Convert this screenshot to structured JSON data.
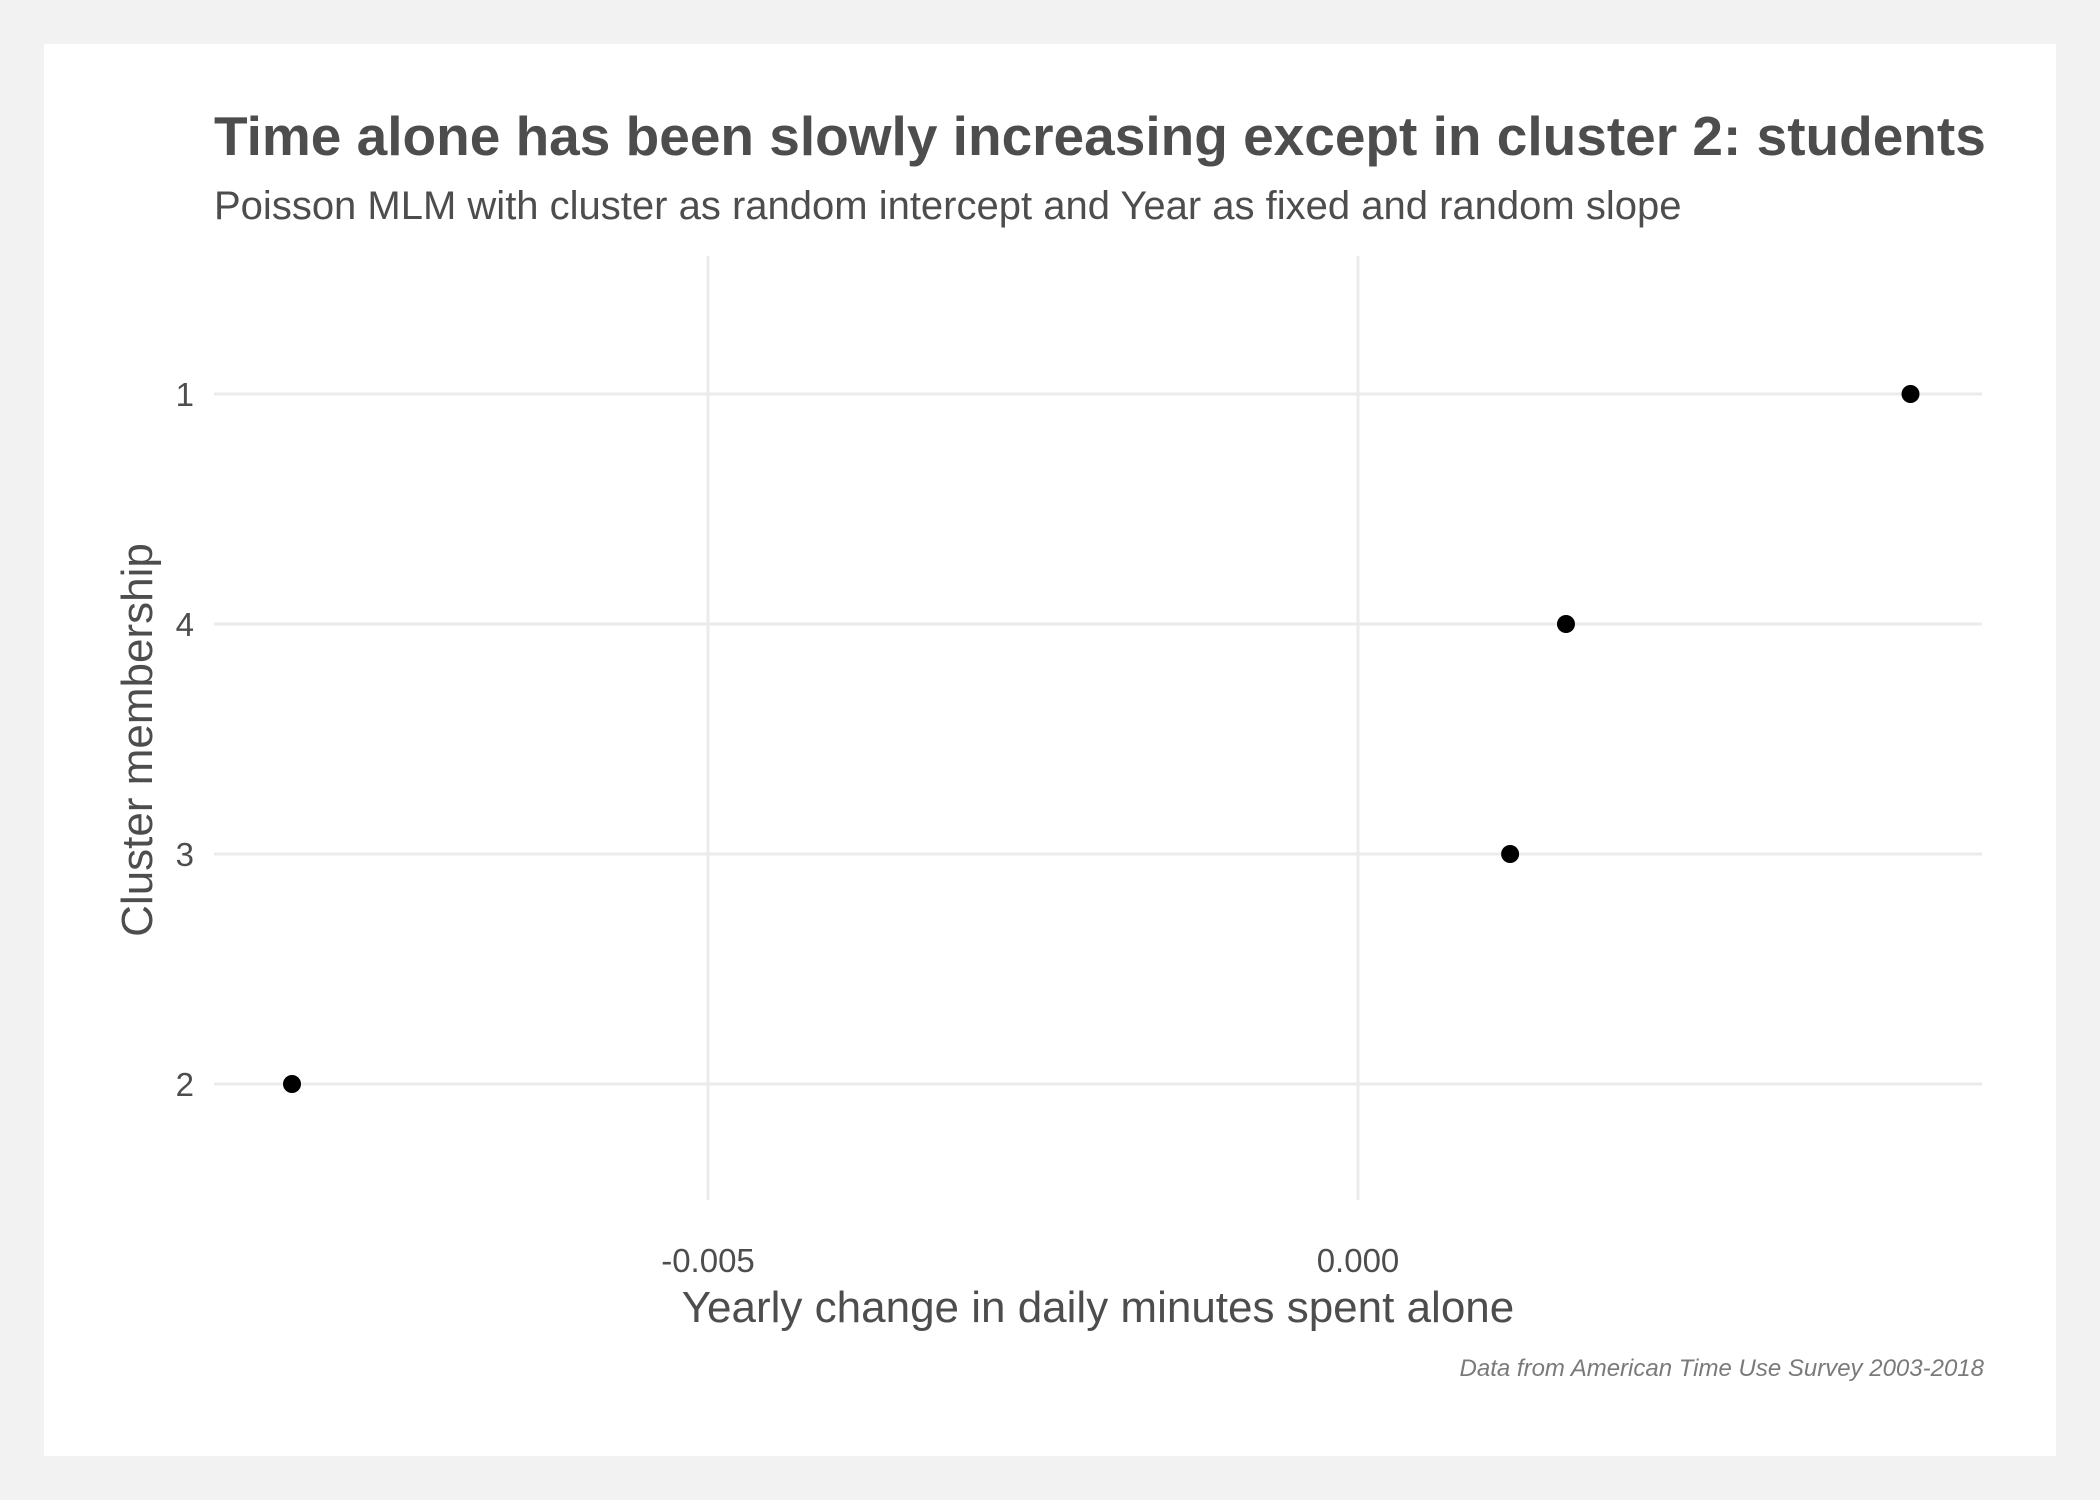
{
  "chart_data": {
    "type": "scatter",
    "title": "Time alone has been slowly increasing except in cluster 2: students",
    "subtitle": "Poisson MLM with cluster as random intercept and Year as fixed and random slope",
    "caption": "Data from American Time Use Survey 2003-2018",
    "xlabel": "Yearly change in daily minutes spent alone",
    "ylabel": "Cluster membership",
    "categories": [
      "1",
      "4",
      "3",
      "2"
    ],
    "points": [
      {
        "cluster": "1",
        "x": 0.00425
      },
      {
        "cluster": "4",
        "x": 0.0016
      },
      {
        "cluster": "3",
        "x": 0.00117
      },
      {
        "cluster": "2",
        "x": -0.0082
      }
    ],
    "xlim": [
      -0.0088,
      0.0048
    ],
    "xticks": [
      -0.005,
      0.0
    ],
    "xtick_labels": [
      "-0.005",
      "0.000"
    ],
    "grid": true,
    "colors": {
      "point": "#000000",
      "grid": "#ebebeb",
      "text": "#4d4d4d"
    }
  }
}
